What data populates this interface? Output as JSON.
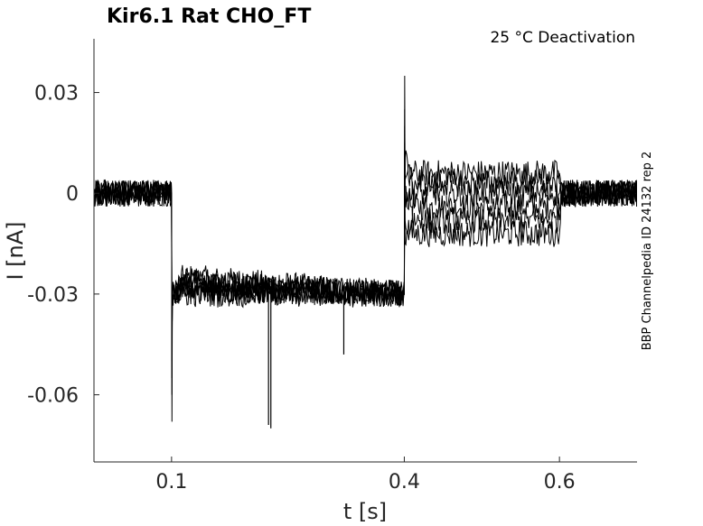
{
  "chart_data": {
    "type": "line",
    "title": "Kir6.1  Rat  CHO_FT",
    "annotation": "25 °C  Deactivation",
    "side_label": "BBP Channelpedia ID 24132 rep 2",
    "xlabel": "t [s]",
    "ylabel": "I [nA]",
    "xlim": [
      0.0,
      0.7
    ],
    "ylim": [
      -0.08,
      0.046
    ],
    "xticks": [
      0.1,
      0.4,
      0.6
    ],
    "xtick_labels": [
      "0.1",
      "0.4",
      "0.6"
    ],
    "yticks": [
      0.03,
      0.0,
      -0.03,
      -0.06
    ],
    "ytick_labels": [
      "0.03",
      "0",
      "-0.03",
      "-0.06"
    ],
    "grid": false,
    "legend": "none",
    "line_color": "#000000",
    "series": [
      {
        "x": [
          0.0,
          0.1,
          0.1005,
          0.101,
          0.115,
          0.4,
          0.4005,
          0.401,
          0.41,
          0.6,
          0.602,
          0.7
        ],
        "y": [
          0.0,
          0.0,
          -0.068,
          -0.03,
          -0.025,
          -0.03,
          0.035,
          0.0,
          -0.004,
          -0.004,
          0.0,
          0.0
        ]
      },
      {
        "x": [
          0.0,
          0.1,
          0.1005,
          0.101,
          0.115,
          0.4,
          0.4005,
          0.401,
          0.41,
          0.6,
          0.602,
          0.7
        ],
        "y": [
          0.0,
          0.0,
          -0.06,
          -0.03,
          -0.026,
          -0.03,
          0.025,
          0.004,
          0.006,
          0.006,
          0.0,
          0.0
        ]
      },
      {
        "x": [
          0.0,
          0.1,
          0.1005,
          0.101,
          0.115,
          0.4,
          0.4005,
          0.401,
          0.41,
          0.6,
          0.602,
          0.7
        ],
        "y": [
          0.0,
          0.0,
          -0.055,
          -0.03,
          -0.027,
          -0.03,
          0.02,
          -0.008,
          -0.012,
          -0.012,
          0.0,
          0.0
        ]
      },
      {
        "x": [
          0.0,
          0.1,
          0.1005,
          0.101,
          0.115,
          0.4,
          0.4005,
          0.401,
          0.41,
          0.6,
          0.602,
          0.7
        ],
        "y": [
          0.0,
          0.0,
          -0.05,
          -0.03,
          -0.028,
          -0.03,
          0.015,
          0.002,
          0.0,
          0.0,
          0.0,
          0.0
        ]
      },
      {
        "x": [
          0.0,
          0.1,
          0.1005,
          0.101,
          0.115,
          0.4,
          0.4005,
          0.401,
          0.41,
          0.6,
          0.602,
          0.7
        ],
        "y": [
          0.0,
          0.0,
          -0.045,
          -0.03,
          -0.029,
          -0.03,
          0.01,
          -0.015,
          -0.008,
          -0.008,
          0.0,
          0.0
        ]
      },
      {
        "x": [
          0.0,
          0.1,
          0.1005,
          0.101,
          0.115,
          0.4,
          0.4005,
          0.401,
          0.41,
          0.6,
          0.602,
          0.7
        ],
        "y": [
          0.0,
          0.0,
          -0.04,
          -0.03,
          -0.03,
          -0.03,
          0.008,
          0.01,
          0.003,
          0.003,
          0.0,
          0.0
        ]
      }
    ],
    "noise_amplitude": 0.004,
    "spikes": [
      {
        "x": 0.225,
        "y": -0.069
      },
      {
        "x": 0.228,
        "y": -0.07
      },
      {
        "x": 0.322,
        "y": -0.048
      }
    ]
  }
}
